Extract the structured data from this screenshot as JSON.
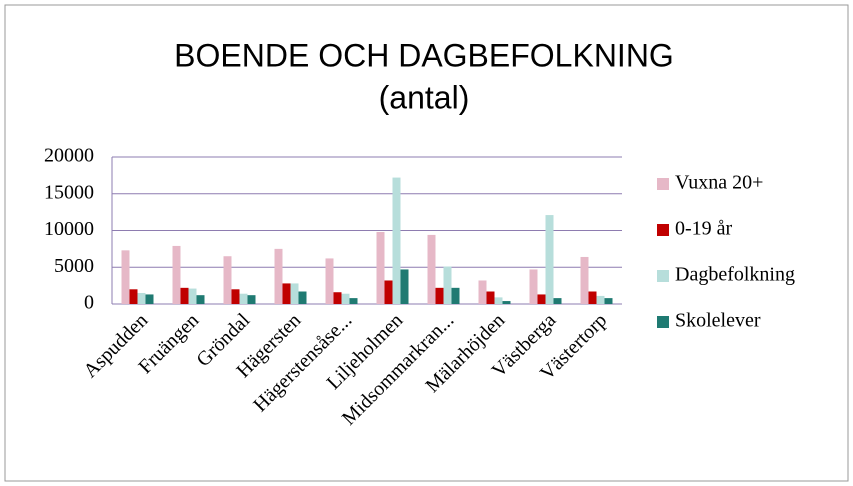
{
  "chart_data": {
    "type": "bar",
    "title": "BOENDE OCH DAGBEFOLKNING",
    "subtitle": "(antal)",
    "categories": [
      "Aspudden",
      "Fruängen",
      "Gröndal",
      "Hägersten",
      "Hägerstensåse...",
      "Liljeholmen",
      "Midsommarkran...",
      "Mälarhöjden",
      "Västberga",
      "Västertorp"
    ],
    "series": [
      {
        "name": "Vuxna 20+",
        "color": "#e6b8c7",
        "values": [
          7300,
          7900,
          6500,
          7500,
          6200,
          9800,
          9400,
          3200,
          4700,
          6400
        ]
      },
      {
        "name": "0-19 år",
        "color": "#c00000",
        "values": [
          2000,
          2200,
          2000,
          2800,
          1600,
          3200,
          2200,
          1700,
          1300,
          1700
        ]
      },
      {
        "name": "Dagbefolkning",
        "color": "#b7dedb",
        "values": [
          1500,
          2100,
          1400,
          2800,
          1400,
          17200,
          5100,
          900,
          12100,
          1100
        ]
      },
      {
        "name": "Skolelever",
        "color": "#1f7a72",
        "values": [
          1300,
          1200,
          1200,
          1700,
          800,
          4700,
          2200,
          400,
          800,
          800
        ]
      }
    ],
    "ylim": [
      0,
      20000
    ],
    "yticks": [
      0,
      5000,
      10000,
      15000,
      20000
    ],
    "grid": true,
    "legend": "right"
  }
}
